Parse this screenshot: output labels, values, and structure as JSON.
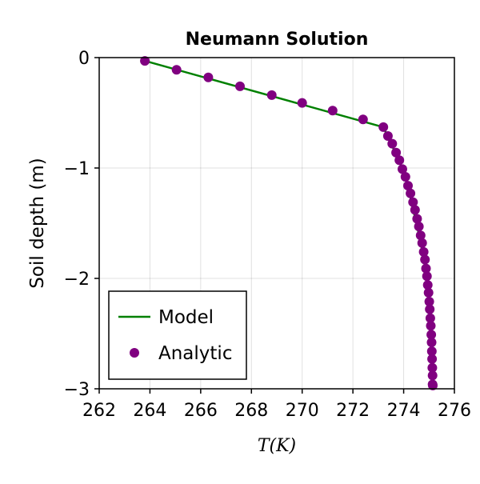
{
  "chart_data": {
    "type": "line",
    "title": "Neumann Solution",
    "xlabel": "T(K)",
    "ylabel": "Soil depth (m)",
    "xlim": [
      262,
      276
    ],
    "ylim": [
      -3,
      0
    ],
    "xticks": [
      262,
      264,
      266,
      268,
      270,
      272,
      274,
      276
    ],
    "yticks": [
      0,
      -1,
      -2,
      -3
    ],
    "grid": true,
    "legend_position": "bottom-left",
    "series": [
      {
        "name": "Model",
        "kind": "line",
        "color": "#008000",
        "x": [
          263.8,
          273.2,
          273.5,
          273.8,
          274.05,
          274.25,
          274.45,
          274.62,
          274.78,
          274.9,
          275.0,
          275.1,
          275.15,
          275.15
        ],
        "y": [
          -0.03,
          -0.63,
          -0.78,
          -0.92,
          -1.08,
          -1.25,
          -1.45,
          -1.62,
          -1.8,
          -1.98,
          -2.2,
          -2.5,
          -2.75,
          -2.96
        ]
      },
      {
        "name": "Analytic",
        "kind": "scatter",
        "color": "#800080",
        "x": [
          263.8,
          265.05,
          266.3,
          267.55,
          268.8,
          270.0,
          271.2,
          272.4,
          273.2,
          273.38,
          273.55,
          273.7,
          273.83,
          273.95,
          274.07,
          274.17,
          274.27,
          274.37,
          274.45,
          274.53,
          274.6,
          274.67,
          274.73,
          274.79,
          274.84,
          274.88,
          274.92,
          274.95,
          274.98,
          275.01,
          275.03,
          275.05,
          275.07,
          275.09,
          275.1,
          275.11,
          275.12,
          275.13,
          275.14,
          275.14,
          275.15
        ],
        "y": [
          -0.03,
          -0.11,
          -0.18,
          -0.26,
          -0.34,
          -0.41,
          -0.48,
          -0.56,
          -0.63,
          -0.71,
          -0.78,
          -0.86,
          -0.93,
          -1.01,
          -1.08,
          -1.16,
          -1.23,
          -1.31,
          -1.38,
          -1.46,
          -1.53,
          -1.61,
          -1.68,
          -1.76,
          -1.83,
          -1.91,
          -1.98,
          -2.06,
          -2.13,
          -2.21,
          -2.28,
          -2.36,
          -2.43,
          -2.51,
          -2.58,
          -2.66,
          -2.73,
          -2.81,
          -2.88,
          -2.96,
          -2.97
        ]
      }
    ]
  }
}
